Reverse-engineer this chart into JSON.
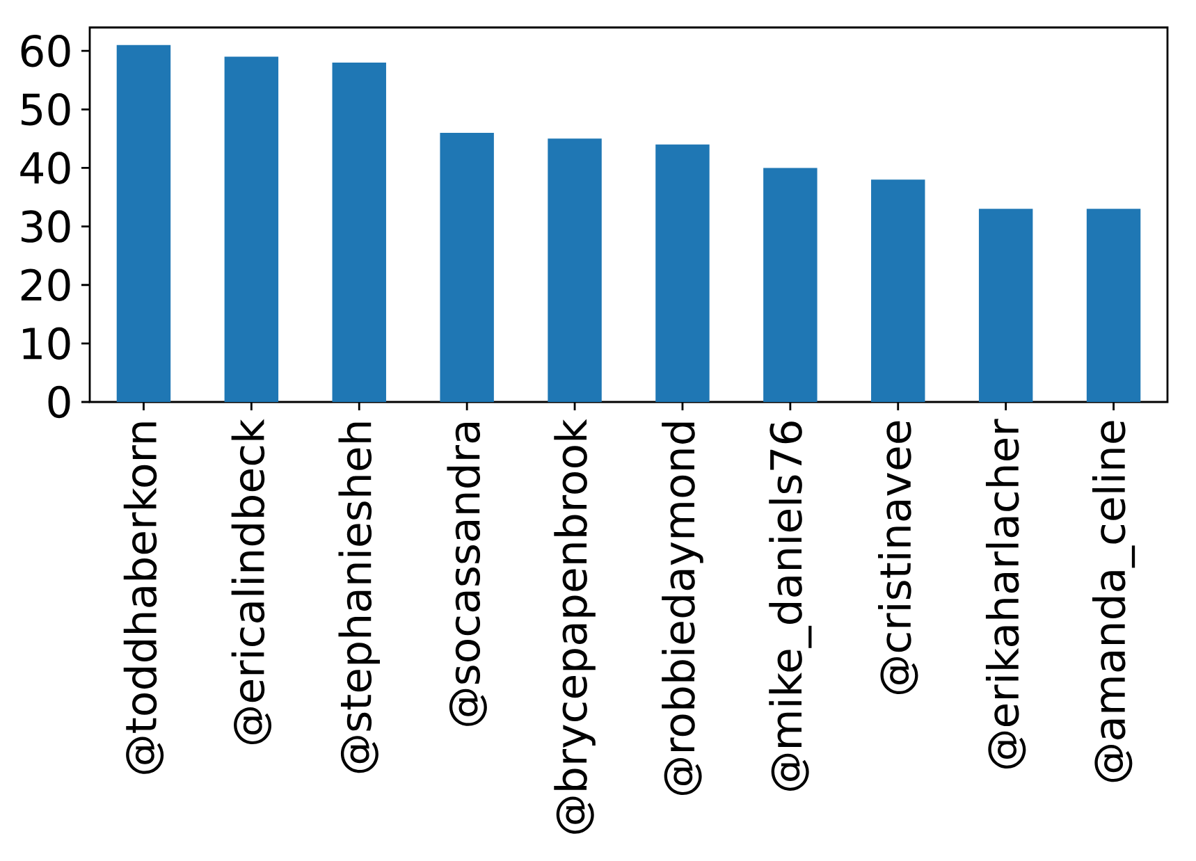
{
  "chart_data": {
    "type": "bar",
    "categories": [
      "@toddhaberkorn",
      "@ericalindbeck",
      "@stephaniesheh",
      "@socassandra",
      "@brycepapenbrook",
      "@robbiedaymond",
      "@mike_daniels76",
      "@cristinavee",
      "@erikaharlacher",
      "@amanda_celine"
    ],
    "values": [
      61,
      59,
      58,
      46,
      45,
      44,
      40,
      38,
      33,
      33
    ],
    "color": "#1f77b4",
    "ylim": [
      0,
      64
    ],
    "yticks": [
      0,
      10,
      20,
      30,
      40,
      50,
      60
    ]
  }
}
